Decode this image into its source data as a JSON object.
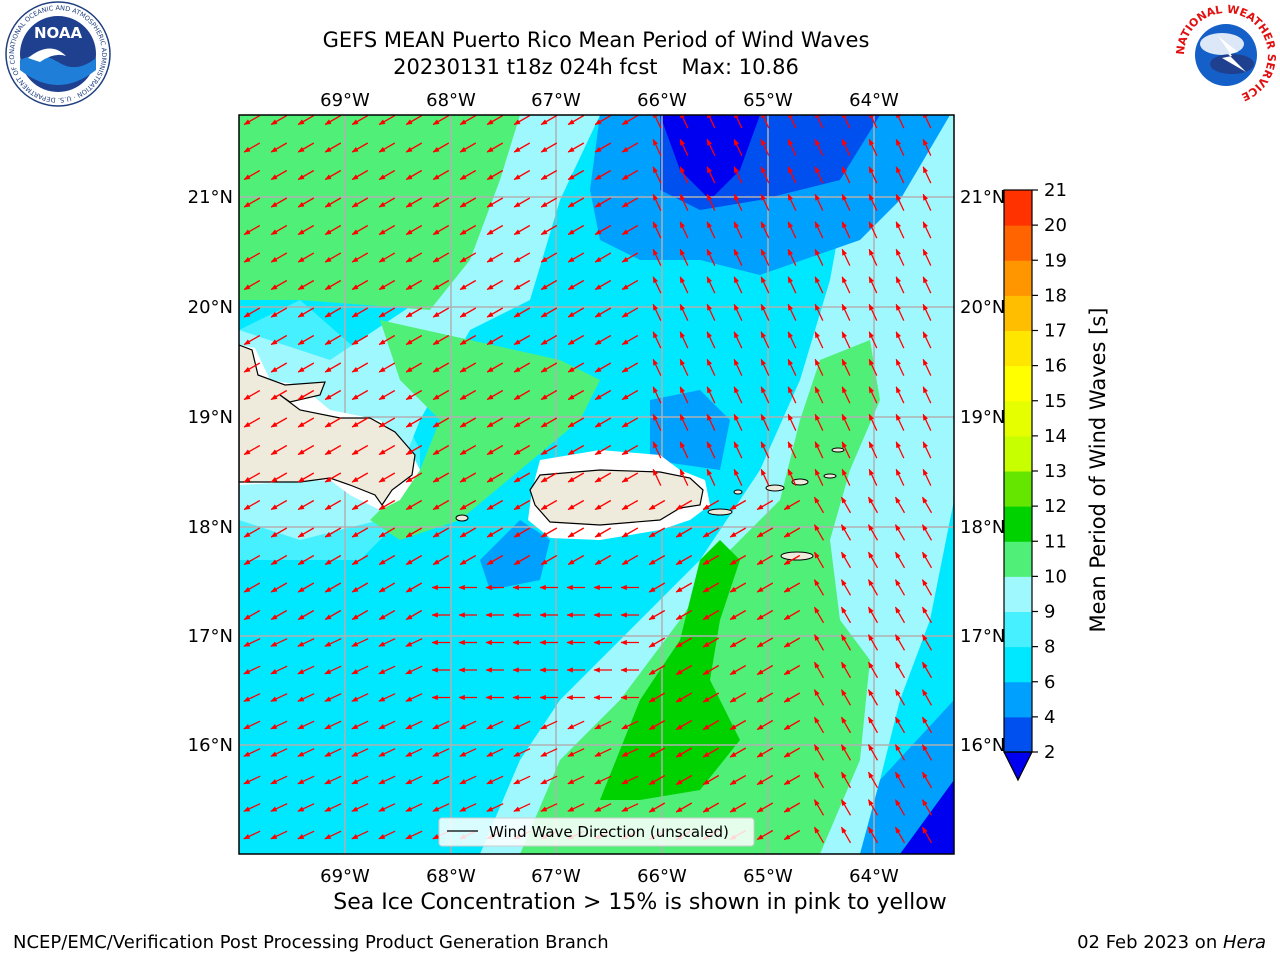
{
  "title": {
    "line1": "GEFS MEAN Puerto Rico Mean Period of Wind Waves",
    "line2_date": "20230131 t18z 024h fcst",
    "line2_max": "Max: 10.86"
  },
  "logos": {
    "left": {
      "icon": "noaa-logo",
      "text": "NOAA",
      "ring_text": "NATIONAL OCEANIC AND ATMOSPHERIC ADMINISTRATION · U.S. DEPARTMENT OF COMMERCE"
    },
    "right": {
      "icon": "nws-logo",
      "ring_text": "NATIONAL WEATHER SERVICE"
    }
  },
  "map": {
    "lon_labels": [
      "69°W",
      "68°W",
      "67°W",
      "66°W",
      "65°W",
      "64°W"
    ],
    "lat_labels": [
      "21°N",
      "20°N",
      "19°N",
      "18°N",
      "17°N",
      "16°N"
    ],
    "legend_label": "Wind Wave Direction (unscaled)",
    "arrow_color": "#ff0000",
    "land_color": "#efebdc"
  },
  "colorbar": {
    "label": "Mean Period of Wind Waves [s]",
    "ticks": [
      "2",
      "4",
      "6",
      "8",
      "9",
      "10",
      "11",
      "12",
      "13",
      "14",
      "15",
      "16",
      "17",
      "18",
      "19",
      "20",
      "21"
    ],
    "colors": [
      "#0050f0",
      "#00a0ff",
      "#00e8ff",
      "#46f0ff",
      "#a0f8ff",
      "#50f078",
      "#00d200",
      "#64e600",
      "#c8ff00",
      "#e6ff00",
      "#ffff00",
      "#ffe600",
      "#ffbe00",
      "#ff9600",
      "#ff6400",
      "#ff3200"
    ],
    "extend_color": "#0000f0"
  },
  "ice_note": "Sea Ice Concentration > 15% is shown in pink to yellow",
  "footer": {
    "left": "NCEP/EMC/Verification Post Processing Product Generation Branch",
    "right_date": "02 Feb 2023 on ",
    "right_host": "Hera"
  }
}
